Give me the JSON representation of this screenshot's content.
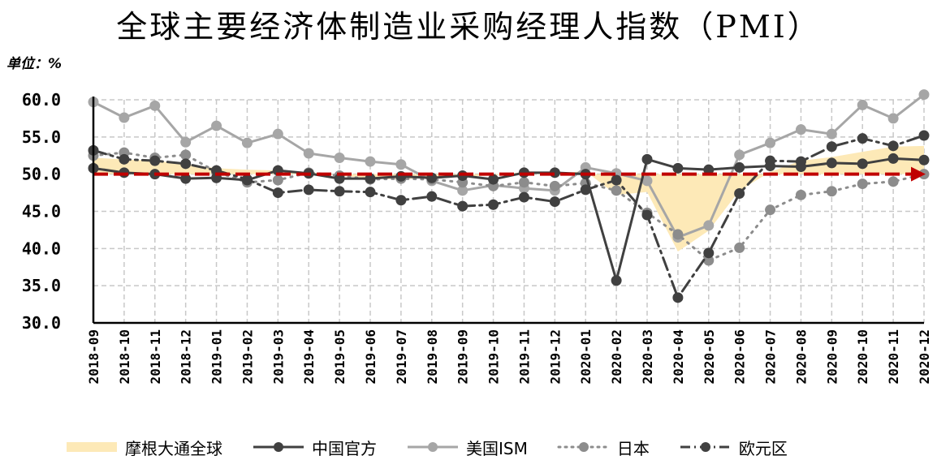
{
  "title": "全球主要经济体制造业采购经理人指数（PMI）",
  "unit_label": "单位：%",
  "colors": {
    "jpm_fill": "#fde9b7",
    "china": "#404040",
    "us": "#a6a6a6",
    "japan": "#8c8c8c",
    "euro": "#404040",
    "threshold": "#c00000",
    "grid": "#c8c8c8"
  },
  "chart_data": {
    "type": "line",
    "ylim": [
      30,
      60
    ],
    "yticks": [
      "60.0",
      "55.0",
      "50.0",
      "45.0",
      "40.0",
      "35.0",
      "30.0"
    ],
    "threshold": 50,
    "x": [
      "2018-09",
      "2018-10",
      "2018-11",
      "2018-12",
      "2019-01",
      "2019-02",
      "2019-03",
      "2019-04",
      "2019-05",
      "2019-06",
      "2019-07",
      "2019-08",
      "2019-09",
      "2019-10",
      "2019-11",
      "2019-12",
      "2020-01",
      "2020-02",
      "2020-03",
      "2020-04",
      "2020-05",
      "2020-06",
      "2020-07",
      "2020-08",
      "2020-09",
      "2020-10",
      "2020-11",
      "2020-12"
    ],
    "series": [
      {
        "name": "摩根大通全球",
        "style": "area",
        "values": [
          52.2,
          52.0,
          51.8,
          51.4,
          50.8,
          50.6,
          50.5,
          50.3,
          49.8,
          49.4,
          49.3,
          49.5,
          49.7,
          49.8,
          50.3,
          50.1,
          50.4,
          47.2,
          47.6,
          39.6,
          42.4,
          47.8,
          50.3,
          51.8,
          52.3,
          53.0,
          53.7,
          53.8
        ]
      },
      {
        "name": "中国官方",
        "style": "solid",
        "values": [
          50.8,
          50.2,
          50.0,
          49.4,
          49.5,
          49.2,
          50.5,
          50.1,
          49.4,
          49.4,
          49.7,
          49.5,
          49.8,
          49.3,
          50.2,
          50.2,
          50.0,
          35.7,
          52.0,
          50.8,
          50.6,
          50.9,
          51.1,
          51.0,
          51.5,
          51.4,
          52.1,
          51.9
        ]
      },
      {
        "name": "美国ISM",
        "style": "solid",
        "values": [
          59.7,
          57.6,
          59.2,
          54.3,
          56.5,
          54.2,
          55.4,
          52.8,
          52.2,
          51.7,
          51.3,
          49.1,
          47.8,
          48.5,
          48.1,
          47.8,
          50.9,
          50.1,
          49.1,
          41.5,
          43.1,
          52.6,
          54.2,
          56.0,
          55.4,
          59.3,
          57.5,
          60.7
        ]
      },
      {
        "name": "日本",
        "style": "dotted",
        "values": [
          52.5,
          52.9,
          52.2,
          52.6,
          50.3,
          48.9,
          49.2,
          50.2,
          49.8,
          49.3,
          49.4,
          49.3,
          48.9,
          48.4,
          48.9,
          48.4,
          48.8,
          47.8,
          44.8,
          41.9,
          38.4,
          40.1,
          45.2,
          47.2,
          47.7,
          48.7,
          49.0,
          50.0
        ]
      },
      {
        "name": "欧元区",
        "style": "dashdot",
        "values": [
          53.2,
          52.0,
          51.8,
          51.4,
          50.5,
          49.3,
          47.5,
          47.9,
          47.7,
          47.6,
          46.5,
          47.0,
          45.7,
          45.9,
          46.9,
          46.3,
          47.9,
          49.2,
          44.5,
          33.4,
          39.4,
          47.4,
          51.8,
          51.7,
          53.7,
          54.8,
          53.8,
          55.2
        ]
      }
    ]
  },
  "legend": {
    "items": [
      "摩根大通全球",
      "中国官方",
      "美国ISM",
      "日本",
      "欧元区"
    ]
  }
}
